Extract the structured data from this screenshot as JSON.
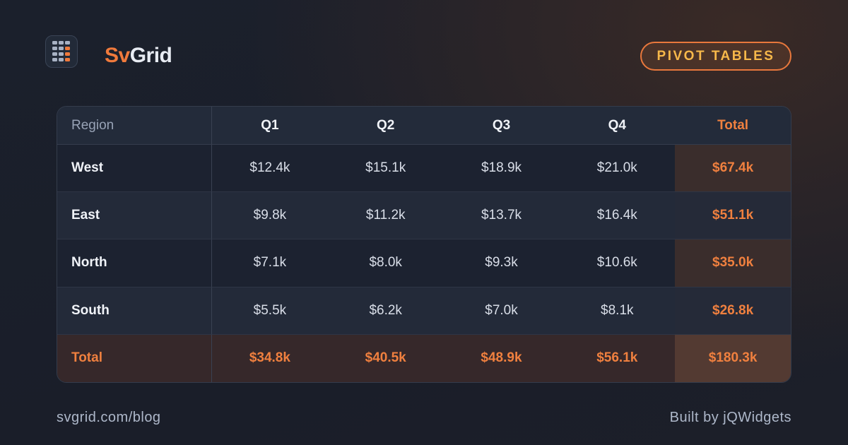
{
  "header": {
    "brand": {
      "accent": "Sv",
      "rest": "Grid"
    },
    "badge": "PIVOT TABLES"
  },
  "table": {
    "columns": [
      "Region",
      "Q1",
      "Q2",
      "Q3",
      "Q4",
      "Total"
    ],
    "rows": [
      [
        "West",
        "$12.4k",
        "$15.1k",
        "$18.9k",
        "$21.0k",
        "$67.4k"
      ],
      [
        "East",
        "$9.8k",
        "$11.2k",
        "$13.7k",
        "$16.4k",
        "$51.1k"
      ],
      [
        "North",
        "$7.1k",
        "$8.0k",
        "$9.3k",
        "$10.6k",
        "$35.0k"
      ],
      [
        "South",
        "$5.5k",
        "$6.2k",
        "$7.0k",
        "$8.1k",
        "$26.8k"
      ]
    ],
    "total_row": [
      "Total",
      "$34.8k",
      "$40.5k",
      "$48.9k",
      "$56.1k",
      "$180.3k"
    ]
  },
  "footer": {
    "url": "svgrid.com/blog",
    "credit": "Built by jQWidgets"
  }
}
